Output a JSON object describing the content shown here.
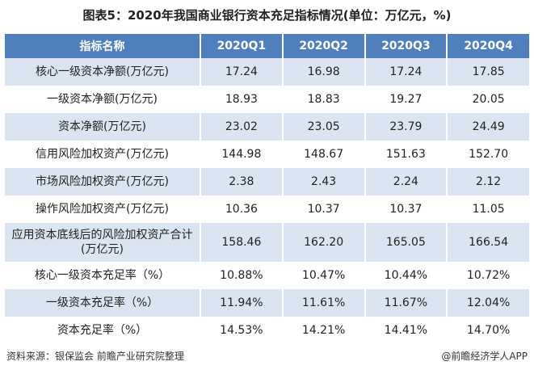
{
  "header": {
    "title": "图表5：2020年我国商业银行资本充足指标情况(单位：万亿元，%)"
  },
  "table": {
    "columns": [
      "指标名称",
      "2020Q1",
      "2020Q2",
      "2020Q3",
      "2020Q4"
    ],
    "rows": [
      [
        "核心一级资本净额(万亿元)",
        "17.24",
        "16.98",
        "17.24",
        "17.85"
      ],
      [
        "一级资本净额(万亿元)",
        "18.93",
        "18.83",
        "19.27",
        "20.05"
      ],
      [
        "资本净额(万亿元)",
        "23.02",
        "23.05",
        "23.79",
        "24.49"
      ],
      [
        "信用风险加权资产(万亿元)",
        "144.98",
        "148.67",
        "151.63",
        "152.70"
      ],
      [
        "市场风险加权资产(万亿元)",
        "2.38",
        "2.43",
        "2.24",
        "2.12"
      ],
      [
        "操作风险加权资产(万亿元)",
        "10.36",
        "10.37",
        "10.37",
        "11.05"
      ],
      [
        "应用资本底线后的风险加权资产合计(万亿元)",
        "158.46",
        "162.20",
        "165.05",
        "166.54"
      ],
      [
        "核心一级资本充足率（%）",
        "10.88%",
        "10.47%",
        "10.44%",
        "10.72%"
      ],
      [
        "一级资本充足率（%）",
        "11.94%",
        "11.61%",
        "11.67%",
        "12.04%"
      ],
      [
        "资本充足率（%）",
        "14.53%",
        "14.21%",
        "14.41%",
        "14.70%"
      ]
    ]
  },
  "footer": {
    "source": "资料来源：银保监会 前瞻产业研究院整理",
    "credit": "@前瞻经济学人APP"
  }
}
